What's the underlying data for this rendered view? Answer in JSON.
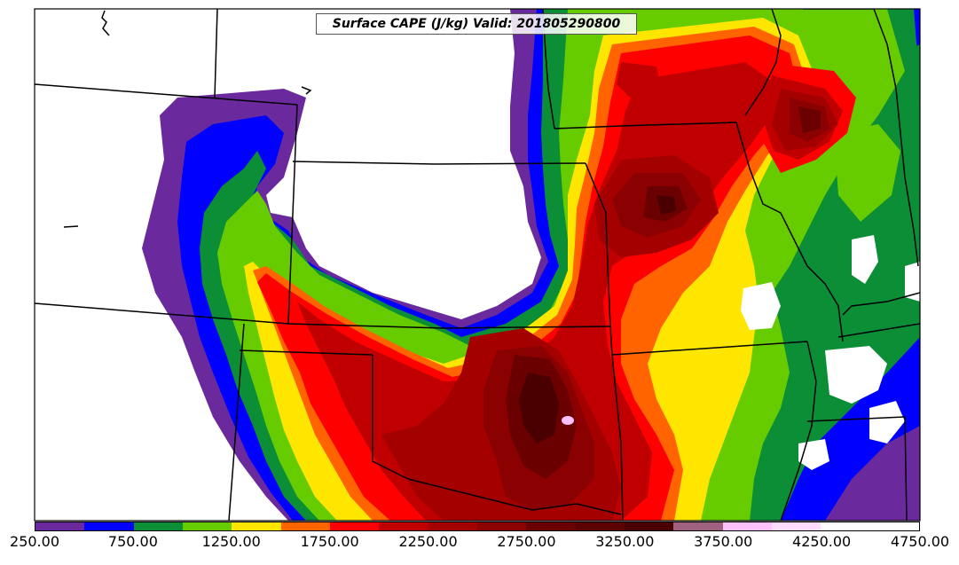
{
  "title": "Surface CAPE (J/kg) Valid: 201805290800",
  "colors": {
    "c250": "#6a2a9e",
    "c500": "#0000ff",
    "c750": "#0b8e36",
    "c1000": "#66cc00",
    "c1250": "#ffe600",
    "c1500": "#ff6400",
    "c1750": "#ff0000",
    "c2000": "#c00000",
    "c2250": "#a50000",
    "c2500": "#8b0000",
    "c2750": "#6b0000",
    "c3000": "#5a0000",
    "c3250": "#4a0000",
    "c3500": "#a06080",
    "c3750": "#ffc0ff",
    "c4000": "#ffdcff",
    "boundary": "#000000"
  },
  "colorbar": {
    "colors": [
      "#6a2a9e",
      "#0000ff",
      "#0b8e36",
      "#66cc00",
      "#ffe600",
      "#ff6400",
      "#ff0000",
      "#c00000",
      "#a50000",
      "#8b0000",
      "#6b0000",
      "#5a0000",
      "#4a0000",
      "#a06080",
      "#ffc0ff",
      "#ffdcff",
      "#ffffff",
      "#ffffff"
    ],
    "labels": [
      "250.00",
      "750.00",
      "1250.00",
      "1750.00",
      "2250.00",
      "2750.00",
      "3250.00",
      "3750.00",
      "4250.00",
      "4750.00"
    ]
  }
}
